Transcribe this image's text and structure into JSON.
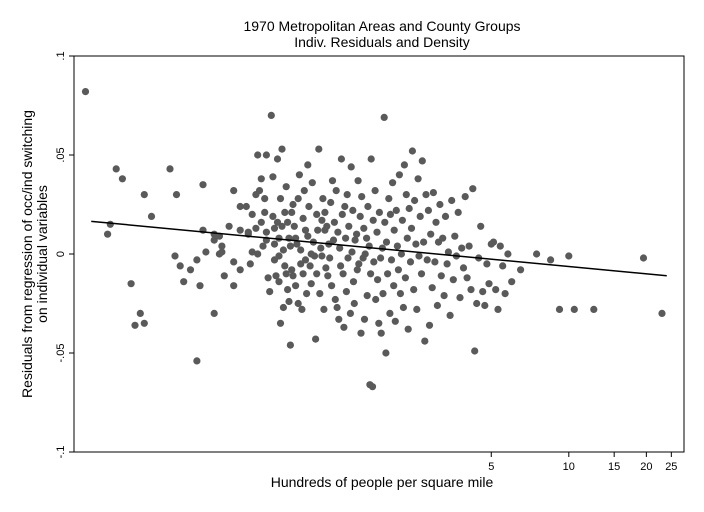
{
  "chart_data": {
    "type": "scatter",
    "title": "1970 Metropolitan Areas and County Groups",
    "subtitle": "Indiv. Residuals and Density",
    "xlabel": "Hundreds of people per square mile",
    "ylabel_line1": "Residuals from regression of occ/ind switching",
    "ylabel_line2": "on individual variables",
    "x_scale": "log",
    "xlim": [
      0.12,
      28
    ],
    "ylim": [
      -0.1,
      0.1
    ],
    "x_ticks": [
      {
        "value": 5,
        "label": "5"
      },
      {
        "value": 10,
        "label": "10"
      },
      {
        "value": 15,
        "label": "15"
      },
      {
        "value": 20,
        "label": "20"
      },
      {
        "value": 25,
        "label": "25"
      }
    ],
    "y_ticks": [
      {
        "value": -0.1,
        "label": "-.1"
      },
      {
        "value": -0.05,
        "label": "-.05"
      },
      {
        "value": 0,
        "label": "0"
      },
      {
        "value": 0.05,
        "label": ".05"
      },
      {
        "value": 0.1,
        "label": ".1"
      }
    ],
    "fit_line": [
      {
        "x": 0.14,
        "y": 0.0165
      },
      {
        "x": 24,
        "y": -0.011
      }
    ],
    "colors": {
      "points": "#5a5a5a",
      "line": "#000000"
    },
    "points": [
      [
        0.133,
        0.082
      ],
      [
        0.166,
        0.015
      ],
      [
        0.162,
        0.01
      ],
      [
        0.175,
        0.043
      ],
      [
        0.185,
        0.038
      ],
      [
        0.2,
        -0.015
      ],
      [
        0.207,
        -0.036
      ],
      [
        0.217,
        -0.03
      ],
      [
        0.225,
        -0.035
      ],
      [
        0.225,
        0.03
      ],
      [
        0.24,
        0.019
      ],
      [
        0.283,
        0.043
      ],
      [
        0.296,
        -0.001
      ],
      [
        0.3,
        0.03
      ],
      [
        0.31,
        -0.006
      ],
      [
        0.32,
        -0.014
      ],
      [
        0.34,
        -0.008
      ],
      [
        0.36,
        -0.054
      ],
      [
        0.36,
        -0.003
      ],
      [
        0.37,
        -0.016
      ],
      [
        0.38,
        0.035
      ],
      [
        0.38,
        0.012
      ],
      [
        0.39,
        0.001
      ],
      [
        0.42,
        -0.03
      ],
      [
        0.42,
        0.007
      ],
      [
        0.42,
        0.01
      ],
      [
        0.44,
        0.009
      ],
      [
        0.44,
        0.0
      ],
      [
        0.45,
        0.001
      ],
      [
        0.45,
        0.004
      ],
      [
        0.46,
        -0.011
      ],
      [
        0.48,
        0.014
      ],
      [
        0.5,
        -0.016
      ],
      [
        0.5,
        0.032
      ],
      [
        0.5,
        -0.004
      ],
      [
        0.53,
        -0.008
      ],
      [
        0.53,
        0.024
      ],
      [
        0.53,
        0.012
      ],
      [
        0.56,
        0.024
      ],
      [
        0.57,
        0.01
      ],
      [
        0.57,
        0.011
      ],
      [
        0.59,
        0.001
      ],
      [
        0.58,
        -0.005
      ],
      [
        0.59,
        0.02
      ],
      [
        0.61,
        0.013
      ],
      [
        0.61,
        0.03
      ],
      [
        0.62,
        0.05
      ],
      [
        0.62,
        0.0
      ],
      [
        0.63,
        0.032
      ],
      [
        0.64,
        0.038
      ],
      [
        0.64,
        0.016
      ],
      [
        0.65,
        0.004
      ],
      [
        0.66,
        0.021
      ],
      [
        0.66,
        0.028
      ],
      [
        0.67,
        0.05
      ],
      [
        0.67,
        0.011
      ],
      [
        0.67,
        0.007
      ],
      [
        0.68,
        -0.012
      ],
      [
        0.69,
        -0.019
      ],
      [
        0.7,
        0.07
      ],
      [
        0.71,
        0.019
      ],
      [
        0.71,
        0.039
      ],
      [
        0.72,
        -0.003
      ],
      [
        0.72,
        0.013
      ],
      [
        0.72,
        0.005
      ],
      [
        0.73,
        -0.011
      ],
      [
        0.74,
        0.048
      ],
      [
        0.74,
        0.016
      ],
      [
        0.75,
        -0.001
      ],
      [
        0.75,
        0.008
      ],
      [
        0.75,
        -0.014
      ],
      [
        0.76,
        -0.035
      ],
      [
        0.76,
        0.028
      ],
      [
        0.77,
        0.053
      ],
      [
        0.77,
        0.014
      ],
      [
        0.78,
        -0.027
      ],
      [
        0.78,
        0.002
      ],
      [
        0.79,
        0.021
      ],
      [
        0.79,
        -0.006
      ],
      [
        0.8,
        -0.01
      ],
      [
        0.8,
        0.034
      ],
      [
        0.81,
        -0.018
      ],
      [
        0.81,
        0.016
      ],
      [
        0.82,
        -0.024
      ],
      [
        0.82,
        0.008
      ],
      [
        0.83,
        0.004
      ],
      [
        0.83,
        -0.046
      ],
      [
        0.84,
        0.021
      ],
      [
        0.84,
        -0.008
      ],
      [
        0.85,
        0.025
      ],
      [
        0.85,
        -0.011
      ],
      [
        0.86,
        0.014
      ],
      [
        0.87,
        0.008
      ],
      [
        0.87,
        -0.016
      ],
      [
        0.88,
        0.005
      ],
      [
        0.89,
        -0.025
      ],
      [
        0.89,
        0.028
      ],
      [
        0.9,
        0.04
      ],
      [
        0.91,
        -0.005
      ],
      [
        0.91,
        0.002
      ],
      [
        0.92,
        -0.028
      ],
      [
        0.93,
        -0.01
      ],
      [
        0.93,
        0.018
      ],
      [
        0.94,
        0.032
      ],
      [
        0.95,
        0.012
      ],
      [
        0.95,
        -0.003
      ],
      [
        0.96,
        -0.02
      ],
      [
        0.97,
        0.045
      ],
      [
        0.97,
        0.009
      ],
      [
        0.98,
        0.024
      ],
      [
        0.99,
        -0.006
      ],
      [
        1.0,
        0.0
      ],
      [
        1.0,
        -0.015
      ],
      [
        1.01,
        0.036
      ],
      [
        1.02,
        0.006
      ],
      [
        1.03,
        -0.001
      ],
      [
        1.04,
        -0.043
      ],
      [
        1.05,
        -0.01
      ],
      [
        1.05,
        0.02
      ],
      [
        1.06,
        0.012
      ],
      [
        1.07,
        0.053
      ],
      [
        1.08,
        -0.02
      ],
      [
        1.09,
        0.003
      ],
      [
        1.1,
        -0.001
      ],
      [
        1.1,
        0.017
      ],
      [
        1.11,
        0.028
      ],
      [
        1.12,
        -0.028
      ],
      [
        1.13,
        0.021
      ],
      [
        1.13,
        0.012
      ],
      [
        1.14,
        -0.007
      ],
      [
        1.15,
        0.014
      ],
      [
        1.16,
        -0.011
      ],
      [
        1.17,
        0.005
      ],
      [
        1.18,
        -0.002
      ],
      [
        1.19,
        0.026
      ],
      [
        1.2,
        -0.016
      ],
      [
        1.21,
        0.037
      ],
      [
        1.22,
        0.007
      ],
      [
        1.23,
        0.016
      ],
      [
        1.24,
        -0.023
      ],
      [
        1.25,
        0.032
      ],
      [
        1.26,
        -0.027
      ],
      [
        1.27,
        0.011
      ],
      [
        1.28,
        -0.033
      ],
      [
        1.29,
        0.003
      ],
      [
        1.3,
        -0.006
      ],
      [
        1.31,
        0.048
      ],
      [
        1.32,
        0.02
      ],
      [
        1.33,
        -0.01
      ],
      [
        1.34,
        -0.037
      ],
      [
        1.35,
        0.024
      ],
      [
        1.36,
        0.008
      ],
      [
        1.37,
        -0.019
      ],
      [
        1.38,
        0.03
      ],
      [
        1.39,
        -0.002
      ],
      [
        1.4,
        0.014
      ],
      [
        1.42,
        -0.03
      ],
      [
        1.43,
        0.044
      ],
      [
        1.44,
        0.001
      ],
      [
        1.45,
        0.022
      ],
      [
        1.46,
        -0.014
      ],
      [
        1.47,
        -0.025
      ],
      [
        1.48,
        0.007
      ],
      [
        1.5,
        0.01
      ],
      [
        1.51,
        -0.008
      ],
      [
        1.52,
        0.037
      ],
      [
        1.53,
        -0.005
      ],
      [
        1.55,
        0.019
      ],
      [
        1.56,
        -0.04
      ],
      [
        1.57,
        0.029
      ],
      [
        1.59,
        -0.002
      ],
      [
        1.6,
        0.013
      ],
      [
        1.61,
        -0.033
      ],
      [
        1.62,
        0.0
      ],
      [
        1.64,
        0.008
      ],
      [
        1.65,
        -0.021
      ],
      [
        1.66,
        0.024
      ],
      [
        1.68,
        0.004
      ],
      [
        1.69,
        -0.066
      ],
      [
        1.7,
        -0.01
      ],
      [
        1.71,
        0.048
      ],
      [
        1.73,
        -0.067
      ],
      [
        1.74,
        0.017
      ],
      [
        1.75,
        -0.004
      ],
      [
        1.77,
        0.032
      ],
      [
        1.78,
        -0.023
      ],
      [
        1.8,
        0.011
      ],
      [
        1.81,
        -0.013
      ],
      [
        1.83,
        -0.035
      ],
      [
        1.84,
        0.021
      ],
      [
        1.86,
        -0.002
      ],
      [
        1.87,
        -0.04
      ],
      [
        1.89,
        0.003
      ],
      [
        1.9,
        -0.02
      ],
      [
        1.92,
        0.069
      ],
      [
        1.93,
        0.016
      ],
      [
        1.95,
        -0.05
      ],
      [
        1.96,
        0.006
      ],
      [
        1.98,
        -0.01
      ],
      [
        2.0,
        0.028
      ],
      [
        2.02,
        -0.03
      ],
      [
        2.03,
        0.02
      ],
      [
        2.05,
        -0.003
      ],
      [
        2.07,
        0.036
      ],
      [
        2.09,
        -0.016
      ],
      [
        2.1,
        0.012
      ],
      [
        2.12,
        -0.034
      ],
      [
        2.14,
        0.022
      ],
      [
        2.16,
        0.004
      ],
      [
        2.18,
        -0.008
      ],
      [
        2.2,
        0.04
      ],
      [
        2.22,
        -0.02
      ],
      [
        2.24,
        0.0
      ],
      [
        2.26,
        0.017
      ],
      [
        2.28,
        -0.027
      ],
      [
        2.3,
        0.045
      ],
      [
        2.32,
        -0.012
      ],
      [
        2.34,
        0.03
      ],
      [
        2.36,
        0.008
      ],
      [
        2.38,
        -0.038
      ],
      [
        2.4,
        0.023
      ],
      [
        2.43,
        -0.004
      ],
      [
        2.45,
        0.013
      ],
      [
        2.47,
        0.052
      ],
      [
        2.5,
        -0.018
      ],
      [
        2.52,
        0.027
      ],
      [
        2.55,
        0.005
      ],
      [
        2.57,
        -0.028
      ],
      [
        2.6,
        0.038
      ],
      [
        2.62,
        -0.001
      ],
      [
        2.65,
        0.019
      ],
      [
        2.68,
        -0.01
      ],
      [
        2.7,
        0.047
      ],
      [
        2.73,
        0.006
      ],
      [
        2.76,
        -0.044
      ],
      [
        2.79,
        0.03
      ],
      [
        2.82,
        -0.003
      ],
      [
        2.85,
        0.022
      ],
      [
        2.88,
        -0.036
      ],
      [
        2.91,
        0.01
      ],
      [
        2.95,
        -0.017
      ],
      [
        2.98,
        0.031
      ],
      [
        3.02,
        -0.004
      ],
      [
        3.05,
        0.016
      ],
      [
        3.09,
        -0.026
      ],
      [
        3.12,
        0.006
      ],
      [
        3.16,
        0.025
      ],
      [
        3.2,
        -0.011
      ],
      [
        3.24,
        0.008
      ],
      [
        3.28,
        -0.021
      ],
      [
        3.32,
        0.019
      ],
      [
        3.37,
        -0.005
      ],
      [
        3.41,
        0.001
      ],
      [
        3.46,
        -0.031
      ],
      [
        3.51,
        0.027
      ],
      [
        3.56,
        -0.013
      ],
      [
        3.61,
        0.009
      ],
      [
        3.66,
        -0.001
      ],
      [
        3.72,
        0.021
      ],
      [
        3.78,
        -0.022
      ],
      [
        3.84,
        0.003
      ],
      [
        3.9,
        -0.007
      ],
      [
        3.96,
        0.029
      ],
      [
        4.03,
        -0.012
      ],
      [
        4.1,
        0.004
      ],
      [
        4.17,
        -0.018
      ],
      [
        4.24,
        0.033
      ],
      [
        4.31,
        -0.049
      ],
      [
        4.39,
        -0.025
      ],
      [
        4.47,
        -0.002
      ],
      [
        4.55,
        0.014
      ],
      [
        4.63,
        -0.019
      ],
      [
        4.72,
        -0.026
      ],
      [
        4.81,
        -0.005
      ],
      [
        4.9,
        -0.015
      ],
      [
        5.0,
        0.005
      ],
      [
        5.1,
        0.006
      ],
      [
        5.2,
        -0.018
      ],
      [
        5.31,
        -0.028
      ],
      [
        5.42,
        0.004
      ],
      [
        5.54,
        -0.006
      ],
      [
        5.66,
        -0.02
      ],
      [
        5.8,
        0.0
      ],
      [
        6.0,
        -0.014
      ],
      [
        6.5,
        -0.008
      ],
      [
        7.5,
        0.0
      ],
      [
        8.5,
        -0.003
      ],
      [
        9.2,
        -0.028
      ],
      [
        10.0,
        -0.001
      ],
      [
        10.5,
        -0.028
      ],
      [
        12.5,
        -0.028
      ],
      [
        19.5,
        -0.002
      ],
      [
        23.0,
        -0.03
      ]
    ]
  }
}
